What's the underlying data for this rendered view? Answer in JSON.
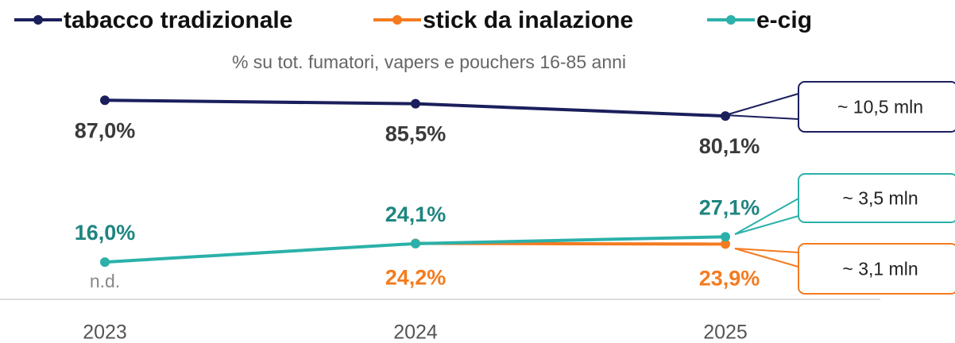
{
  "chart_data": {
    "type": "line",
    "subtitle": "% su tot. fumatori, vapers e pouchers 16-85 anni",
    "categories": [
      "2023",
      "2024",
      "2025"
    ],
    "ylim": [
      0,
      100
    ],
    "series": [
      {
        "name": "tabacco tradizionale",
        "color": "#1b1f5c",
        "label_color": "#3a3a3a",
        "values": [
          87.0,
          85.5,
          80.1
        ],
        "value_labels": [
          "87,0%",
          "85,5%",
          "80,1%"
        ]
      },
      {
        "name": "stick da inalazione",
        "color": "#f47b20",
        "label_color": "#f47b20",
        "values": [
          null,
          24.2,
          23.9
        ],
        "value_labels": [
          "n.d.",
          "24,2%",
          "23,9%"
        ]
      },
      {
        "name": "e-cig",
        "color": "#2bb1a9",
        "label_color": "#1f8580",
        "values": [
          16.0,
          24.1,
          27.1
        ],
        "value_labels": [
          "16,0%",
          "24,1%",
          "27,1%"
        ]
      }
    ],
    "annotations": [
      {
        "text": "~ 10,5 mln",
        "color": "#1b1f5c"
      },
      {
        "text": "~ 3,5 mln",
        "color": "#2bb1a9"
      },
      {
        "text": "~ 3,1 mln",
        "color": "#f47b20"
      }
    ]
  }
}
